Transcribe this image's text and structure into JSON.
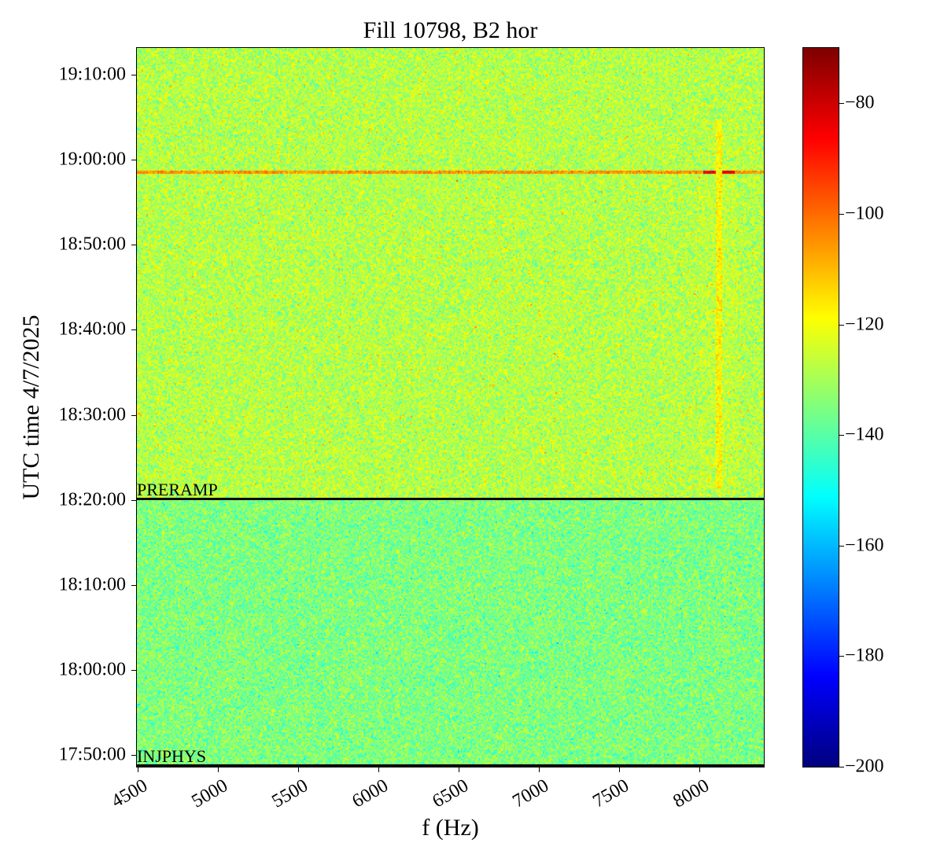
{
  "chart_data": {
    "type": "heatmap",
    "title": "Fill 10798, B2 hor",
    "xlabel": "f (Hz)",
    "ylabel": "UTC time 4/7/2025",
    "xlim": [
      4495,
      8400
    ],
    "ylim": [
      "17:48:37",
      "19:13:09"
    ],
    "xticks": [
      "4500",
      "5000",
      "5500",
      "6000",
      "6500",
      "7000",
      "7500",
      "8000"
    ],
    "xtick_values": [
      4500,
      5000,
      5500,
      6000,
      6500,
      7000,
      7500,
      8000
    ],
    "yticks": [
      "19:10:00",
      "19:00:00",
      "18:50:00",
      "18:40:00",
      "18:30:00",
      "18:20:00",
      "18:10:00",
      "18:00:00",
      "17:50:00"
    ],
    "colorbar": {
      "colormap": "jet",
      "range": [
        -200,
        -70
      ],
      "ticks": [
        "−80",
        "−100",
        "−120",
        "−140",
        "−160",
        "−180",
        "−200"
      ],
      "tick_values": [
        -80,
        -100,
        -120,
        -140,
        -160,
        -180,
        -200
      ]
    },
    "background_level": {
      "after_preramp": -128,
      "before_preramp": -135
    },
    "markers": [
      {
        "label": "PRERAMP",
        "time": "18:20:10"
      },
      {
        "label": "INJPHYS",
        "time": "17:48:40"
      }
    ],
    "features": [
      {
        "kind": "horizontal line",
        "time": "18:58:37",
        "level": -105,
        "peak_level": -85,
        "peak_freq": 8120
      },
      {
        "kind": "vertical line",
        "freq": 8115,
        "time_range": [
          "18:21:30",
          "19:05:00"
        ],
        "level": -118
      }
    ]
  }
}
